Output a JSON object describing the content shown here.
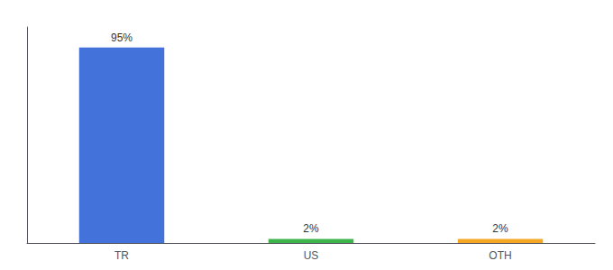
{
  "chart_data": {
    "type": "bar",
    "categories": [
      "TR",
      "US",
      "OTH"
    ],
    "values": [
      95,
      2,
      2
    ],
    "value_labels": [
      "95%",
      "2%",
      "2%"
    ],
    "colors": [
      "#4472db",
      "#3db54a",
      "#f5a623"
    ],
    "data_labels": true,
    "ylim": [
      0,
      105
    ],
    "tick_labels": "x",
    "grid": false
  }
}
